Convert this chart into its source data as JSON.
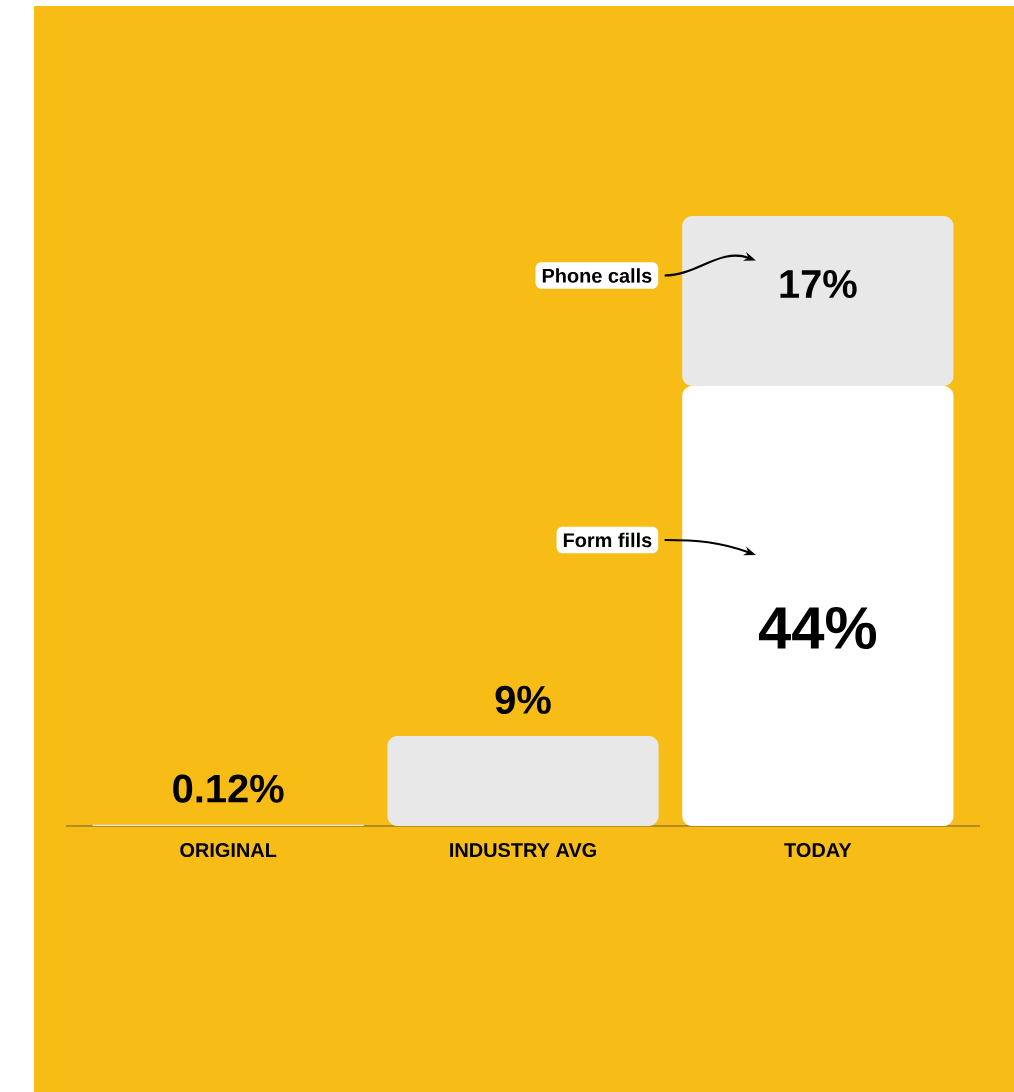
{
  "chart_data": {
    "type": "bar",
    "stacked": true,
    "categories": [
      "ORIGINAL",
      "INDUSTRY AVG",
      "TODAY"
    ],
    "series": [
      {
        "color": "#e8e8e8",
        "values": [
          0.12,
          9,
          null
        ],
        "value_labels": [
          "0.12%",
          "9%",
          null
        ]
      },
      {
        "name": "Form fills",
        "color": "#ffffff",
        "values": [
          null,
          null,
          44
        ],
        "value_labels": [
          null,
          null,
          "44%"
        ]
      },
      {
        "name": "Phone calls",
        "color": "#e8e8e8",
        "values": [
          null,
          null,
          17
        ],
        "value_labels": [
          null,
          null,
          "17%"
        ]
      }
    ]
  }
}
